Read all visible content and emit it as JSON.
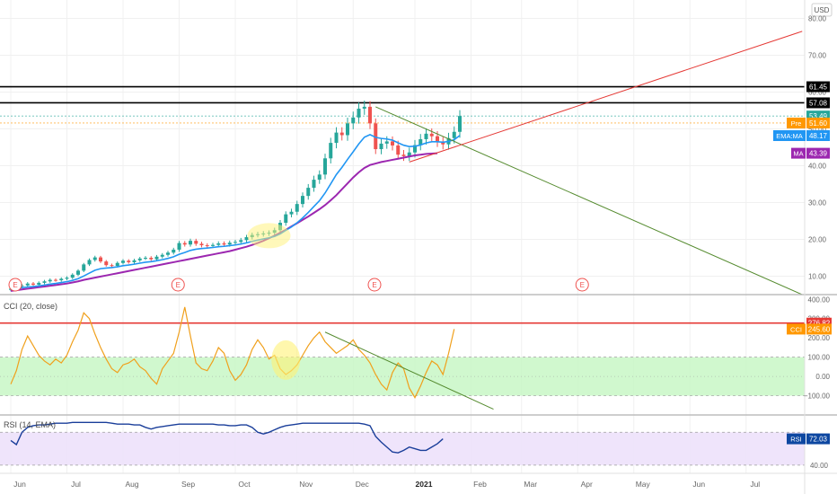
{
  "currency": "USD",
  "chart_data": [
    {
      "type": "candlestick",
      "pane": "price",
      "y_ticks": [
        10,
        20,
        30,
        40,
        50,
        60,
        70,
        80
      ],
      "ylim": [
        5,
        85
      ],
      "price_labels": [
        {
          "name": "resistance-high",
          "text": "61.45",
          "value": 61.45,
          "bg": "#000000",
          "fg": "#ffffff"
        },
        {
          "name": "resistance-low",
          "text": "57.08",
          "value": 57.08,
          "bg": "#000000",
          "fg": "#ffffff"
        },
        {
          "name": "last-price",
          "text": "53.49",
          "value": 53.49,
          "bg": "#26a69a",
          "fg": "#ffffff"
        },
        {
          "name": "pre-market",
          "prefix": "Pre",
          "text": "51.60",
          "value": 51.6,
          "bg": "#ff9800",
          "fg": "#ffffff"
        },
        {
          "name": "ema-ma",
          "prefix": "EMA:MA",
          "text": "48.17",
          "value": 48.17,
          "bg": "#2196f3",
          "fg": "#ffffff"
        },
        {
          "name": "moving-average",
          "prefix": "MA",
          "text": "43.39",
          "value": 43.39,
          "bg": "#9c27b0",
          "fg": "#ffffff"
        }
      ],
      "closes": [
        6.6,
        7.3,
        7.5,
        8.0,
        7.7,
        8.2,
        8.6,
        9.0,
        8.9,
        9.3,
        9.6,
        10.4,
        11.5,
        13.2,
        14.4,
        15.1,
        14.0,
        13.0,
        12.8,
        13.6,
        14.2,
        13.8,
        14.3,
        14.8,
        15.0,
        14.6,
        15.3,
        15.8,
        16.4,
        17.2,
        19.0,
        18.6,
        19.6,
        18.8,
        18.4,
        18.2,
        18.5,
        18.9,
        18.6,
        19.1,
        19.3,
        19.8,
        20.6,
        21.2,
        21.4,
        21.6,
        21.8,
        22.5,
        24.5,
        26.8,
        27.5,
        29.6,
        31.8,
        34.0,
        36.2,
        37.6,
        42.0,
        46.2,
        49.0,
        48.3,
        51.5,
        53.1,
        55.5,
        56.0,
        51.5,
        44.5,
        46.0,
        46.6,
        45.5,
        43.0,
        42.6,
        43.6,
        45.6,
        47.2,
        48.7,
        48.0,
        46.5,
        45.8,
        47.5,
        49.2,
        53.49
      ],
      "events": [
        "E",
        "E",
        "E",
        "E"
      ],
      "events_x": [
        0,
        29,
        64,
        101
      ],
      "moving_average": [
        6.0,
        6.2,
        6.4,
        6.6,
        6.8,
        7.0,
        7.2,
        7.4,
        7.6,
        7.8,
        8.0,
        8.3,
        8.6,
        9.0,
        9.3,
        9.6,
        9.9,
        10.2,
        10.5,
        10.8,
        11.1,
        11.4,
        11.7,
        12.0,
        12.3,
        12.6,
        12.9,
        13.2,
        13.5,
        13.8,
        14.1,
        14.4,
        14.7,
        15.0,
        15.3,
        15.6,
        15.9,
        16.2,
        16.5,
        16.8,
        17.2,
        17.6,
        18.0,
        18.5,
        19.0,
        19.6,
        20.3,
        21.0,
        21.8,
        22.6,
        23.5,
        24.4,
        25.3,
        26.2,
        27.2,
        28.2,
        29.3,
        30.6,
        32.0,
        33.6,
        35.2,
        36.8,
        38.2,
        39.4,
        40.2,
        40.6,
        41.0,
        41.3,
        41.6,
        41.9,
        42.2,
        42.5,
        42.8,
        43.0,
        43.2,
        43.3,
        43.39
      ],
      "trendlines": [
        {
          "name": "descending-trendline",
          "color": "#558b2f",
          "x1": 65,
          "y1": 56.0,
          "x2": 141,
          "y2": 5.0
        },
        {
          "name": "ascending-trendline",
          "color": "#e53935",
          "x1": 71,
          "y1": 41.0,
          "x2": 141,
          "y2": 76.5
        }
      ],
      "horizontal_levels": [
        61.45,
        57.08
      ]
    },
    {
      "type": "line",
      "pane": "cci",
      "label": "CCI (20, close)",
      "y_ticks": [
        -100,
        0,
        100,
        200,
        300,
        400
      ],
      "ylim": [
        -200,
        420
      ],
      "band": [
        -100,
        100
      ],
      "level_line": {
        "text": "276.82",
        "value": 276.82,
        "bg": "#e53935"
      },
      "last_label": {
        "prefix": "CCI",
        "text": "245.60",
        "value": 245.6,
        "bg": "#ff9800"
      },
      "values": [
        -40,
        30,
        140,
        210,
        160,
        110,
        80,
        60,
        90,
        70,
        110,
        180,
        240,
        330,
        300,
        220,
        150,
        90,
        40,
        20,
        60,
        70,
        90,
        50,
        30,
        -10,
        -40,
        40,
        80,
        120,
        230,
        360,
        210,
        70,
        40,
        30,
        80,
        150,
        120,
        30,
        -20,
        10,
        60,
        140,
        190,
        150,
        90,
        110,
        40,
        10,
        30,
        60,
        110,
        160,
        200,
        230,
        180,
        150,
        120,
        140,
        160,
        190,
        140,
        110,
        70,
        10,
        -40,
        -70,
        20,
        70,
        40,
        -60,
        -110,
        -50,
        20,
        80,
        60,
        10,
        120,
        245.6
      ],
      "trendline": {
        "color": "#558b2f",
        "x1": 56,
        "y1": 230,
        "x2": 86,
        "y2": -170
      }
    },
    {
      "type": "line",
      "pane": "rsi",
      "label": "RSI (14, EMA)",
      "y_ticks": [
        40
      ],
      "ylim": [
        30,
        100
      ],
      "band": [
        40,
        80
      ],
      "last_label": {
        "prefix": "RSI",
        "text": "72.03",
        "value": 72.03,
        "bg": "#0d47a1"
      },
      "values": [
        70,
        65,
        80,
        86,
        88,
        89,
        89,
        90,
        91,
        91,
        91,
        92,
        92,
        92,
        92,
        92,
        92,
        92,
        91,
        90,
        90,
        90,
        89,
        89,
        86,
        84,
        86,
        87,
        88,
        89,
        90,
        90,
        90,
        90,
        90,
        90,
        90,
        89,
        89,
        88,
        88,
        89,
        89,
        86,
        80,
        78,
        80,
        83,
        86,
        88,
        89,
        90,
        91,
        91,
        91,
        91,
        91,
        91,
        91,
        91,
        91,
        91,
        91,
        90,
        88,
        75,
        68,
        62,
        56,
        55,
        58,
        62,
        60,
        58,
        58,
        62,
        66,
        72.03
      ]
    }
  ],
  "x_axis": {
    "labels": [
      "Jun",
      "Jul",
      "Aug",
      "Sep",
      "Oct",
      "Nov",
      "Dec",
      "2021",
      "Feb",
      "Mar",
      "Apr",
      "May",
      "Jun",
      "Jul"
    ],
    "positions": [
      0,
      10,
      20,
      30,
      40,
      51,
      61,
      72,
      82,
      91,
      101,
      111,
      121,
      131
    ]
  }
}
